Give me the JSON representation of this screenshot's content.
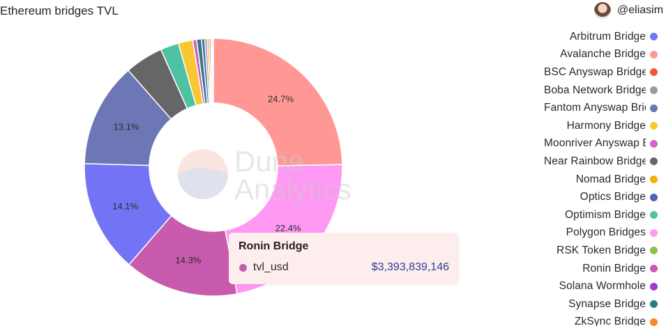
{
  "header": {
    "title": "Ethereum bridges TVL",
    "author": "@eliasim"
  },
  "watermark": {
    "line1": "Dune",
    "line2": "Analytics"
  },
  "chart_data": {
    "type": "pie",
    "title": "Ethereum bridges TVL",
    "slices": [
      {
        "name": "Avalanche Bridge",
        "value": 24.7,
        "label": "24.7%",
        "color": "#ff9894"
      },
      {
        "name": "Polygon Bridges",
        "value": 22.4,
        "label": "22.4%",
        "color": "#ff98f2"
      },
      {
        "name": "Ronin Bridge",
        "value": 14.3,
        "label": "14.3%",
        "color": "#c85bad"
      },
      {
        "name": "Arbitrum Bridge",
        "value": 14.1,
        "label": "14.1%",
        "color": "#7373f5"
      },
      {
        "name": "Fantom Anyswap Bridge",
        "value": 13.1,
        "label": "13.1%",
        "color": "#6d77b6"
      },
      {
        "name": "Near Rainbow Bridge",
        "value": 4.8,
        "label": "",
        "color": "#666666"
      },
      {
        "name": "Optimism Bridge",
        "value": 2.3,
        "label": "",
        "color": "#4ec2a3"
      },
      {
        "name": "Harmony Bridge",
        "value": 1.8,
        "label": "",
        "color": "#f8c832"
      },
      {
        "name": "Moonriver Anyswap Bridge",
        "value": 0.5,
        "label": "",
        "color": "#d861c8"
      },
      {
        "name": "Synapse Bridge",
        "value": 0.6,
        "label": "",
        "color": "#2e7d7d"
      },
      {
        "name": "Optics Bridge",
        "value": 0.4,
        "label": "",
        "color": "#4c63b6"
      },
      {
        "name": "Boba Network Bridge",
        "value": 0.3,
        "label": "",
        "color": "#9a9a9a"
      },
      {
        "name": "Nomad Bridge",
        "value": 0.25,
        "label": "",
        "color": "#f0b400"
      },
      {
        "name": "Solana Wormhole",
        "value": 0.2,
        "label": "",
        "color": "#9b3bd8"
      },
      {
        "name": "ZkSync Bridge",
        "value": 0.15,
        "label": "",
        "color": "#f28c28"
      },
      {
        "name": "BSC Anyswap Bridge",
        "value": 0.1,
        "label": "",
        "color": "#f0573b"
      },
      {
        "name": "RSK Token Bridge",
        "value": 0.08,
        "label": "",
        "color": "#8bc34a"
      }
    ],
    "legend_position": "right"
  },
  "legend": {
    "items": [
      {
        "label": "Arbitrum Bridge",
        "color": "#7373f5"
      },
      {
        "label": "Avalanche Bridge",
        "color": "#ff9894"
      },
      {
        "label": "BSC Anyswap Bridge",
        "color": "#f0573b"
      },
      {
        "label": "Boba Network Bridge",
        "color": "#9a9a9a"
      },
      {
        "label": "Fantom Anyswap Bridge",
        "color": "#6d77b6"
      },
      {
        "label": "Harmony Bridge",
        "color": "#f8c832"
      },
      {
        "label": "Moonriver Anyswap Bridge",
        "color": "#d861c8"
      },
      {
        "label": "Near Rainbow Bridge",
        "color": "#666666"
      },
      {
        "label": "Nomad Bridge",
        "color": "#f0b400"
      },
      {
        "label": "Optics Bridge",
        "color": "#4c63b6"
      },
      {
        "label": "Optimism Bridge",
        "color": "#4ec2a3"
      },
      {
        "label": "Polygon Bridges",
        "color": "#ff98f2"
      },
      {
        "label": "RSK Token Bridge",
        "color": "#8bc34a"
      },
      {
        "label": "Ronin Bridge",
        "color": "#c85bad"
      },
      {
        "label": "Solana Wormhole",
        "color": "#9b3bd8"
      },
      {
        "label": "Synapse Bridge",
        "color": "#2e7d7d"
      },
      {
        "label": "ZkSync Bridge",
        "color": "#f28c28"
      }
    ]
  },
  "tooltip": {
    "title": "Ronin Bridge",
    "series": "tvl_usd",
    "value": "$3,393,839,146",
    "color": "#c85bad"
  }
}
